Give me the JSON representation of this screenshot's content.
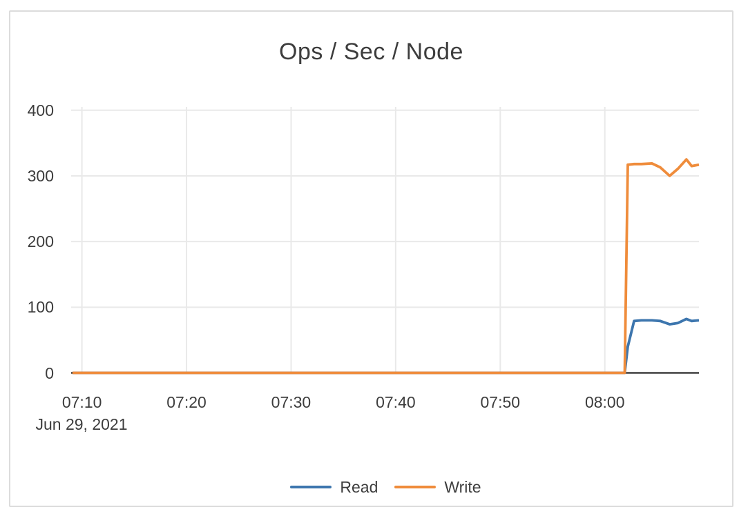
{
  "title": "Ops / Sec / Node",
  "colors": {
    "read": "#3d76ae",
    "write": "#ef8c3b",
    "grid": "#e9e9e9",
    "zero_axis": "#3f3f3f",
    "text": "#3d3d3d",
    "panel_border": "#dcdcdc",
    "background": "#ffffff"
  },
  "legend": {
    "position": "bottom-center",
    "items": [
      {
        "label": "Read",
        "color": "#3d76ae"
      },
      {
        "label": "Write",
        "color": "#ef8c3b"
      }
    ]
  },
  "x_axis": {
    "date_label": "Jun 29, 2021",
    "tick_labels": [
      "07:10",
      "07:20",
      "07:30",
      "07:40",
      "07:50",
      "08:00"
    ],
    "ticks_minutes_after_0700": [
      10,
      20,
      30,
      40,
      50,
      60
    ]
  },
  "y_axis": {
    "tick_labels": [
      "0",
      "100",
      "200",
      "300",
      "400"
    ],
    "ticks": [
      0,
      100,
      200,
      300,
      400
    ]
  },
  "chart_data": {
    "type": "line",
    "title": "Ops / Sec / Node",
    "xlabel": "",
    "ylabel": "",
    "date_label": "Jun 29, 2021",
    "x_unit": "time of day on Jun 29, 2021",
    "x_range_minutes_after_0700": [
      9.1,
      69.0
    ],
    "ylim": [
      0,
      405
    ],
    "grid": true,
    "legend_position": "bottom",
    "x_ticks": [
      {
        "t": 10,
        "label": "07:10"
      },
      {
        "t": 20,
        "label": "07:20"
      },
      {
        "t": 30,
        "label": "07:30"
      },
      {
        "t": 40,
        "label": "07:40"
      },
      {
        "t": 50,
        "label": "07:50"
      },
      {
        "t": 60,
        "label": "08:00"
      }
    ],
    "y_ticks": [
      0,
      100,
      200,
      300,
      400
    ],
    "x_minutes_after_0700": [
      9.1,
      15,
      20,
      25,
      30,
      35,
      40,
      45,
      50,
      55,
      60,
      61.9,
      62.2,
      62.8,
      63.5,
      64.5,
      65.3,
      66.2,
      67,
      67.8,
      68.3,
      69
    ],
    "x_times": [
      "07:09",
      "07:15",
      "07:20",
      "07:25",
      "07:30",
      "07:35",
      "07:40",
      "07:45",
      "07:50",
      "07:55",
      "08:00",
      "08:01:54",
      "08:02:12",
      "08:02:48",
      "08:03:30",
      "08:04:30",
      "08:05:18",
      "08:06:12",
      "08:07:00",
      "08:07:48",
      "08:08:18",
      "08:09:00"
    ],
    "series": [
      {
        "name": "Read",
        "color": "#3d76ae",
        "values": [
          0,
          0,
          0,
          0,
          0,
          0,
          0,
          0,
          0,
          0,
          0,
          0,
          40,
          79,
          80,
          80,
          79,
          74,
          76,
          82,
          79,
          80
        ]
      },
      {
        "name": "Write",
        "color": "#ef8c3b",
        "values": [
          0,
          0,
          0,
          0,
          0,
          0,
          0,
          0,
          0,
          0,
          0,
          0,
          317,
          318,
          318,
          319,
          313,
          300,
          311,
          325,
          315,
          317
        ]
      }
    ]
  }
}
